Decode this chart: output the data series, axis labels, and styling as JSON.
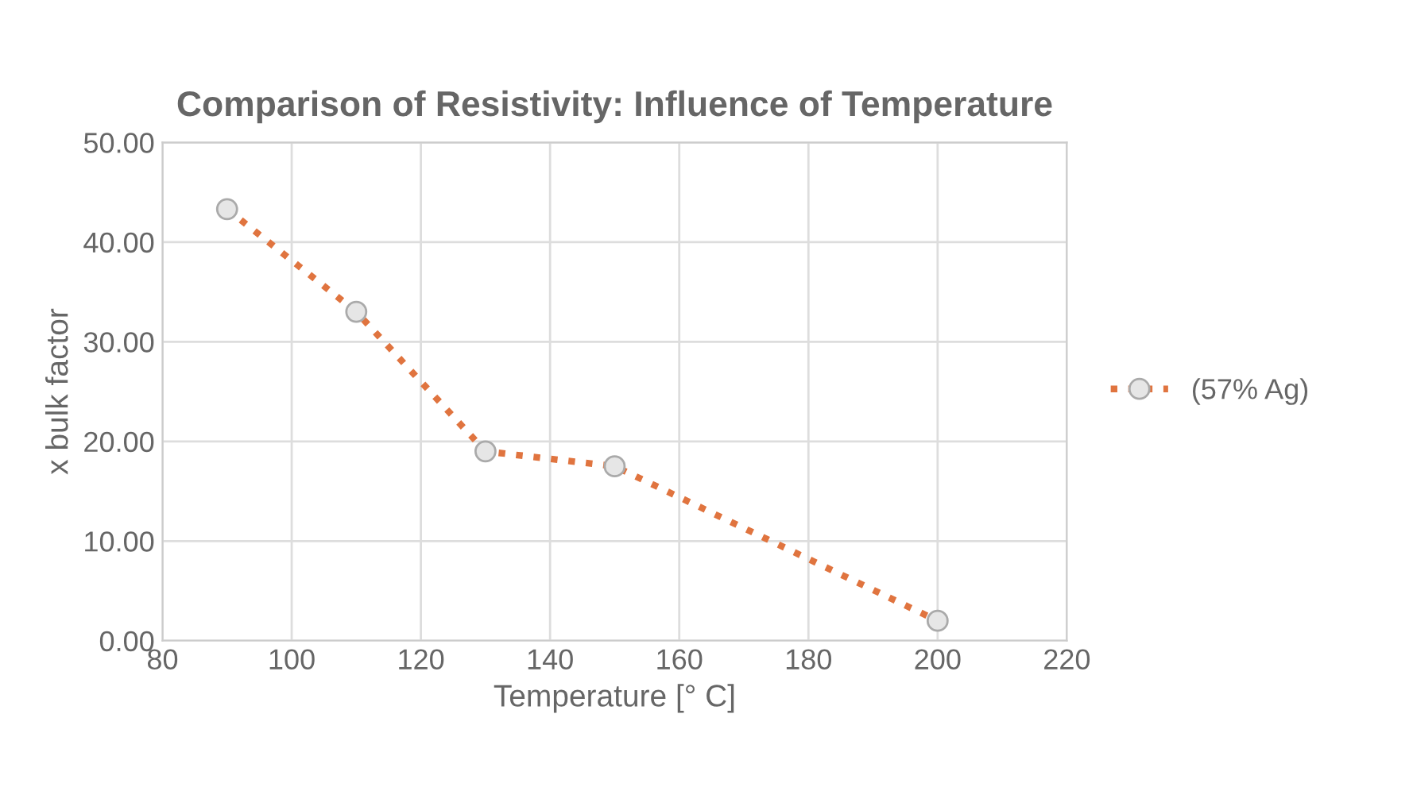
{
  "chart_data": {
    "type": "line",
    "title": "Comparison of Resistivity: Influence of Temperature",
    "xlabel": "Temperature [° C]",
    "ylabel": "x bulk factor",
    "x": [
      90,
      110,
      130,
      150,
      200
    ],
    "series": [
      {
        "name": "(57% Ag)",
        "color": "#e0743f",
        "values": [
          43.3,
          33.0,
          19.0,
          17.5,
          2.0
        ]
      }
    ],
    "xlim": [
      80,
      220
    ],
    "xticks": [
      80,
      100,
      120,
      140,
      160,
      180,
      200,
      220
    ],
    "ylim": [
      0,
      50
    ],
    "yticks": [
      {
        "value": 0,
        "label": "0.00"
      },
      {
        "value": 10,
        "label": "10.00"
      },
      {
        "value": 20,
        "label": "20.00"
      },
      {
        "value": 30,
        "label": "30.00"
      },
      {
        "value": 40,
        "label": "40.00"
      },
      {
        "value": 50,
        "label": "50.00"
      }
    ],
    "grid": true,
    "legend": "right",
    "marker": "circle",
    "line_style": "dotted"
  }
}
